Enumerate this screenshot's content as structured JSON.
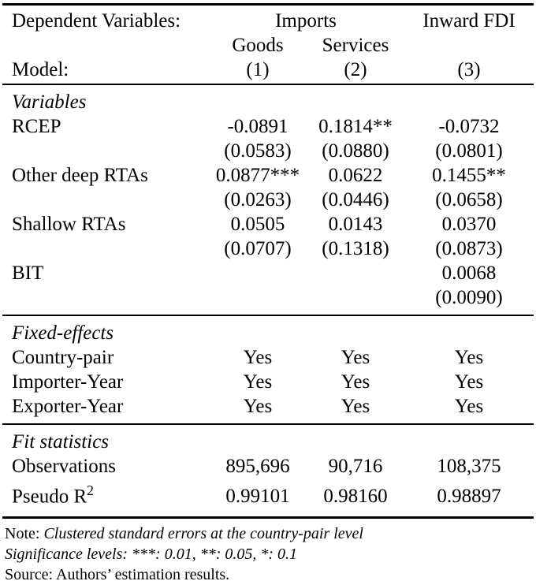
{
  "table": {
    "header": {
      "dep_var_label": "Dependent Variables:",
      "group_imports": "Imports",
      "group_fdi": "Inward FDI",
      "sub_goods": "Goods",
      "sub_services": "Services",
      "model_label": "Model:",
      "models": [
        "(1)",
        "(2)",
        "(3)"
      ]
    },
    "sections": [
      {
        "title": "Variables",
        "rows": [
          {
            "label": "RCEP",
            "values": [
              "-0.0891",
              "0.1814**",
              "-0.0732"
            ]
          },
          {
            "label": "",
            "values": [
              "(0.0583)",
              "(0.0880)",
              "(0.0801)"
            ]
          },
          {
            "label": "Other deep RTAs",
            "values": [
              "0.0877***",
              "0.0622",
              "0.1455**"
            ]
          },
          {
            "label": "",
            "values": [
              "(0.0263)",
              "(0.0446)",
              "(0.0658)"
            ]
          },
          {
            "label": "Shallow RTAs",
            "values": [
              "0.0505",
              "0.0143",
              "0.0370"
            ]
          },
          {
            "label": "",
            "values": [
              "(0.0707)",
              "(0.1318)",
              "(0.0873)"
            ]
          },
          {
            "label": "BIT",
            "values": [
              "",
              "",
              "0.0068"
            ]
          },
          {
            "label": "",
            "values": [
              "",
              "",
              "(0.0090)"
            ]
          }
        ]
      },
      {
        "title": "Fixed-effects",
        "rows": [
          {
            "label": "Country-pair",
            "values": [
              "Yes",
              "Yes",
              "Yes"
            ]
          },
          {
            "label": "Importer-Year",
            "values": [
              "Yes",
              "Yes",
              "Yes"
            ]
          },
          {
            "label": "Exporter-Year",
            "values": [
              "Yes",
              "Yes",
              "Yes"
            ]
          }
        ]
      },
      {
        "title": "Fit statistics",
        "rows": [
          {
            "label": "Observations",
            "values": [
              "895,696",
              "90,716",
              "108,375"
            ]
          },
          {
            "label": "Pseudo R",
            "label_sup": "2",
            "values": [
              "0.99101",
              "0.98160",
              "0.98897"
            ]
          }
        ]
      }
    ],
    "notes": [
      {
        "prefix": "Note:",
        "body": "Clustered standard errors at the country-pair level"
      },
      {
        "prefix": "",
        "body": "Significance levels: ***: 0.01, **: 0.05, *: 0.1"
      },
      {
        "prefix": "Source:",
        "body": "Authors’ estimation results."
      }
    ],
    "colors": {
      "text": "#000000",
      "background": "#ffffff",
      "rule": "#000000"
    }
  }
}
